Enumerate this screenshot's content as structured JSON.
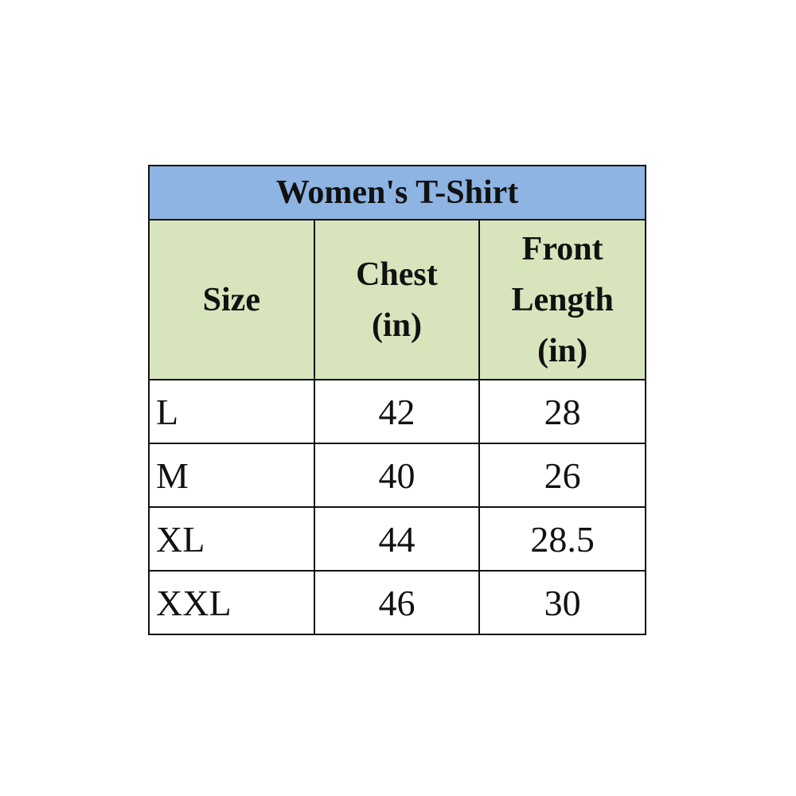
{
  "table": {
    "title": "Women's T-Shirt",
    "headers": [
      "Size",
      "Chest (in)",
      "Front Length (in)"
    ],
    "header_lines": [
      [
        "Size"
      ],
      [
        "Chest",
        "(in)"
      ],
      [
        "Front",
        "Length",
        "(in)"
      ]
    ],
    "rows": [
      {
        "size": "L",
        "chest": "42",
        "front_length": "28"
      },
      {
        "size": "M",
        "chest": "40",
        "front_length": "26"
      },
      {
        "size": "XL",
        "chest": "44",
        "front_length": "28.5"
      },
      {
        "size": "XXL",
        "chest": "46",
        "front_length": "30"
      }
    ]
  },
  "colors": {
    "title_bg": "#8DB4E2",
    "header_bg": "#D8E4BC",
    "border": "#111111"
  }
}
